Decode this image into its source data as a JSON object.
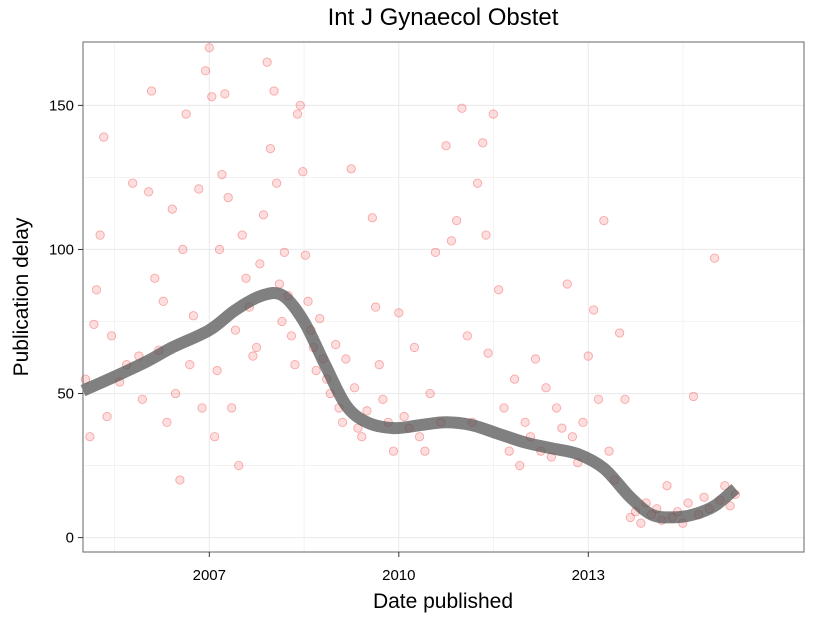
{
  "chart_data": {
    "type": "scatter",
    "title": "Int J Gynaecol Obstet",
    "xlabel": "Date published",
    "ylabel": "Publication delay",
    "xlim": [
      "2005-01-01",
      "2016-06-01"
    ],
    "ylim": [
      -5,
      172
    ],
    "x_ticks": [
      "2007",
      "2010",
      "2013"
    ],
    "y_ticks": [
      "0",
      "50",
      "100",
      "150"
    ],
    "grid": true,
    "colors": {
      "points": "#ee0000",
      "smooth_band": "#555555",
      "panel_border": "#7f7f7f",
      "grid": "#ebebeb"
    },
    "scatter_series": [
      {
        "points": [
          [
            "2005-01-15",
            55
          ],
          [
            "2005-02-10",
            35
          ],
          [
            "2005-03-05",
            74
          ],
          [
            "2005-03-20",
            86
          ],
          [
            "2005-04-10",
            105
          ],
          [
            "2005-05-01",
            139
          ],
          [
            "2005-05-20",
            42
          ],
          [
            "2005-06-15",
            70
          ],
          [
            "2005-08-01",
            54
          ],
          [
            "2005-09-10",
            60
          ],
          [
            "2005-10-15",
            123
          ],
          [
            "2005-11-20",
            63
          ],
          [
            "2005-12-10",
            48
          ],
          [
            "2006-01-15",
            120
          ],
          [
            "2006-02-01",
            155
          ],
          [
            "2006-02-20",
            90
          ],
          [
            "2006-03-15",
            65
          ],
          [
            "2006-04-10",
            82
          ],
          [
            "2006-05-01",
            40
          ],
          [
            "2006-06-01",
            114
          ],
          [
            "2006-06-20",
            50
          ],
          [
            "2006-07-15",
            20
          ],
          [
            "2006-08-01",
            100
          ],
          [
            "2006-08-20",
            147
          ],
          [
            "2006-09-10",
            60
          ],
          [
            "2006-10-01",
            77
          ],
          [
            "2006-11-01",
            121
          ],
          [
            "2006-11-20",
            45
          ],
          [
            "2006-12-10",
            162
          ],
          [
            "2007-01-01",
            170
          ],
          [
            "2007-01-15",
            153
          ],
          [
            "2007-02-01",
            35
          ],
          [
            "2007-02-15",
            58
          ],
          [
            "2007-03-01",
            100
          ],
          [
            "2007-03-15",
            126
          ],
          [
            "2007-04-01",
            154
          ],
          [
            "2007-04-20",
            118
          ],
          [
            "2007-05-10",
            45
          ],
          [
            "2007-06-01",
            72
          ],
          [
            "2007-06-20",
            25
          ],
          [
            "2007-07-10",
            105
          ],
          [
            "2007-08-01",
            90
          ],
          [
            "2007-08-20",
            80
          ],
          [
            "2007-09-10",
            63
          ],
          [
            "2007-10-01",
            66
          ],
          [
            "2007-10-20",
            95
          ],
          [
            "2007-11-10",
            112
          ],
          [
            "2007-12-01",
            165
          ],
          [
            "2007-12-20",
            135
          ],
          [
            "2008-01-10",
            155
          ],
          [
            "2008-01-25",
            123
          ],
          [
            "2008-02-10",
            88
          ],
          [
            "2008-02-25",
            75
          ],
          [
            "2008-03-10",
            99
          ],
          [
            "2008-04-01",
            84
          ],
          [
            "2008-04-20",
            70
          ],
          [
            "2008-05-10",
            60
          ],
          [
            "2008-05-25",
            147
          ],
          [
            "2008-06-10",
            150
          ],
          [
            "2008-06-25",
            127
          ],
          [
            "2008-07-10",
            98
          ],
          [
            "2008-07-25",
            82
          ],
          [
            "2008-08-10",
            72
          ],
          [
            "2008-08-25",
            66
          ],
          [
            "2008-09-10",
            58
          ],
          [
            "2008-10-01",
            76
          ],
          [
            "2008-10-20",
            62
          ],
          [
            "2008-11-10",
            55
          ],
          [
            "2008-12-01",
            50
          ],
          [
            "2009-01-01",
            67
          ],
          [
            "2009-01-20",
            45
          ],
          [
            "2009-02-10",
            40
          ],
          [
            "2009-03-01",
            62
          ],
          [
            "2009-04-01",
            128
          ],
          [
            "2009-04-20",
            52
          ],
          [
            "2009-05-10",
            38
          ],
          [
            "2009-06-01",
            35
          ],
          [
            "2009-07-01",
            44
          ],
          [
            "2009-08-01",
            111
          ],
          [
            "2009-08-20",
            80
          ],
          [
            "2009-09-10",
            60
          ],
          [
            "2009-10-01",
            48
          ],
          [
            "2009-11-01",
            40
          ],
          [
            "2009-12-01",
            30
          ],
          [
            "2010-01-01",
            78
          ],
          [
            "2010-02-01",
            42
          ],
          [
            "2010-03-01",
            38
          ],
          [
            "2010-04-01",
            66
          ],
          [
            "2010-05-01",
            35
          ],
          [
            "2010-06-01",
            30
          ],
          [
            "2010-07-01",
            50
          ],
          [
            "2010-08-01",
            99
          ],
          [
            "2010-09-01",
            40
          ],
          [
            "2010-10-01",
            136
          ],
          [
            "2010-11-01",
            103
          ],
          [
            "2010-12-01",
            110
          ],
          [
            "2011-01-01",
            149
          ],
          [
            "2011-02-01",
            70
          ],
          [
            "2011-03-01",
            40
          ],
          [
            "2011-04-01",
            123
          ],
          [
            "2011-05-01",
            137
          ],
          [
            "2011-05-20",
            105
          ],
          [
            "2011-06-01",
            64
          ],
          [
            "2011-07-01",
            147
          ],
          [
            "2011-08-01",
            86
          ],
          [
            "2011-09-01",
            45
          ],
          [
            "2011-10-01",
            30
          ],
          [
            "2011-11-01",
            55
          ],
          [
            "2011-12-01",
            25
          ],
          [
            "2012-01-01",
            40
          ],
          [
            "2012-02-01",
            35
          ],
          [
            "2012-03-01",
            62
          ],
          [
            "2012-04-01",
            30
          ],
          [
            "2012-05-01",
            52
          ],
          [
            "2012-06-01",
            28
          ],
          [
            "2012-07-01",
            45
          ],
          [
            "2012-08-01",
            38
          ],
          [
            "2012-09-01",
            88
          ],
          [
            "2012-10-01",
            35
          ],
          [
            "2012-11-01",
            26
          ],
          [
            "2012-12-01",
            40
          ],
          [
            "2013-01-01",
            63
          ],
          [
            "2013-02-01",
            79
          ],
          [
            "2013-03-01",
            48
          ],
          [
            "2013-04-01",
            110
          ],
          [
            "2013-05-01",
            30
          ],
          [
            "2013-06-01",
            20
          ],
          [
            "2013-07-01",
            71
          ],
          [
            "2013-08-01",
            48
          ],
          [
            "2013-09-01",
            7
          ],
          [
            "2013-10-01",
            9
          ],
          [
            "2013-11-01",
            5
          ],
          [
            "2013-12-01",
            12
          ],
          [
            "2014-01-01",
            8
          ],
          [
            "2014-02-01",
            10
          ],
          [
            "2014-03-01",
            6
          ],
          [
            "2014-04-01",
            18
          ],
          [
            "2014-05-01",
            7
          ],
          [
            "2014-06-01",
            9
          ],
          [
            "2014-07-01",
            5
          ],
          [
            "2014-08-01",
            12
          ],
          [
            "2014-09-01",
            49
          ],
          [
            "2014-10-01",
            8
          ],
          [
            "2014-11-01",
            14
          ],
          [
            "2014-12-01",
            10
          ],
          [
            "2015-01-01",
            97
          ],
          [
            "2015-02-01",
            13
          ],
          [
            "2015-03-01",
            18
          ],
          [
            "2015-04-01",
            11
          ],
          [
            "2015-05-01",
            15
          ]
        ]
      }
    ],
    "smooth_trend": [
      [
        "2005-01-01",
        51
      ],
      [
        "2005-06-01",
        55
      ],
      [
        "2006-01-01",
        61
      ],
      [
        "2006-06-01",
        66
      ],
      [
        "2007-01-01",
        72
      ],
      [
        "2007-06-01",
        79
      ],
      [
        "2007-11-01",
        84
      ],
      [
        "2008-03-01",
        84
      ],
      [
        "2008-07-01",
        75
      ],
      [
        "2008-11-01",
        60
      ],
      [
        "2009-03-01",
        46
      ],
      [
        "2009-07-01",
        40
      ],
      [
        "2009-12-01",
        38
      ],
      [
        "2010-05-01",
        39
      ],
      [
        "2010-10-01",
        40
      ],
      [
        "2011-03-01",
        39
      ],
      [
        "2011-08-01",
        36
      ],
      [
        "2012-01-01",
        33
      ],
      [
        "2012-06-01",
        31
      ],
      [
        "2012-11-01",
        29
      ],
      [
        "2013-04-01",
        24
      ],
      [
        "2013-09-01",
        14
      ],
      [
        "2014-01-01",
        8
      ],
      [
        "2014-05-01",
        7
      ],
      [
        "2014-09-01",
        8
      ],
      [
        "2015-01-01",
        11
      ],
      [
        "2015-05-01",
        17
      ]
    ]
  }
}
